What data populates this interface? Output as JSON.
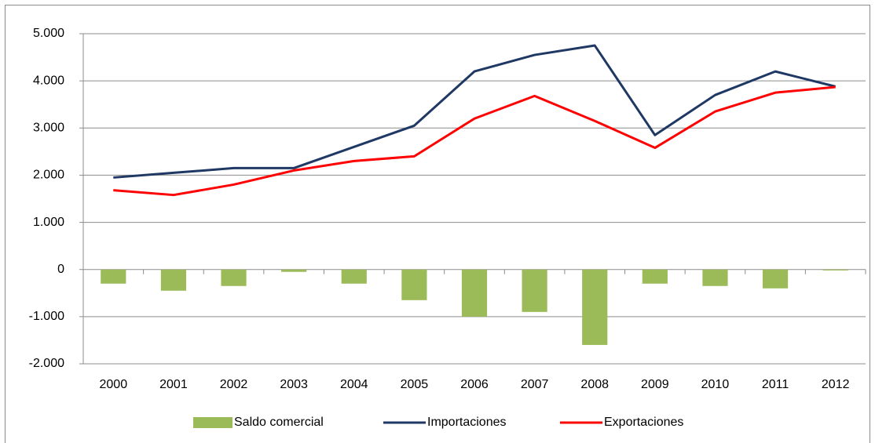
{
  "chart_data": {
    "type": "combo",
    "categories": [
      "2000",
      "2001",
      "2002",
      "2003",
      "2004",
      "2005",
      "2006",
      "2007",
      "2008",
      "2009",
      "2010",
      "2011",
      "2012"
    ],
    "series": [
      {
        "name": "Saldo comercial",
        "type": "bar",
        "color": "#9bbb59",
        "values": [
          -300,
          -450,
          -350,
          -50,
          -300,
          -650,
          -1000,
          -900,
          -1600,
          -300,
          -350,
          -400,
          -20
        ]
      },
      {
        "name": "Importaciones",
        "type": "line",
        "color": "#1f3864",
        "values": [
          1950,
          2050,
          2150,
          2150,
          2600,
          3050,
          4200,
          4550,
          4750,
          2850,
          3700,
          4200,
          3880
        ]
      },
      {
        "name": "Exportaciones",
        "type": "line",
        "color": "#ff0000",
        "values": [
          1680,
          1580,
          1800,
          2100,
          2300,
          2400,
          3200,
          3680,
          3150,
          2580,
          3350,
          3750,
          3870
        ]
      }
    ],
    "ylim": [
      -2000,
      5000
    ],
    "yticks": [
      {
        "value": -2000,
        "label": "-2.000"
      },
      {
        "value": -1000,
        "label": "-1.000"
      },
      0,
      {
        "value": 1000,
        "label": "1.000"
      },
      {
        "value": 2000,
        "label": "2.000"
      },
      {
        "value": 3000,
        "label": "3.000"
      },
      {
        "value": 4000,
        "label": "4.000"
      },
      {
        "value": 5000,
        "label": "5.000"
      }
    ],
    "grid": true,
    "legend": "bottom"
  }
}
